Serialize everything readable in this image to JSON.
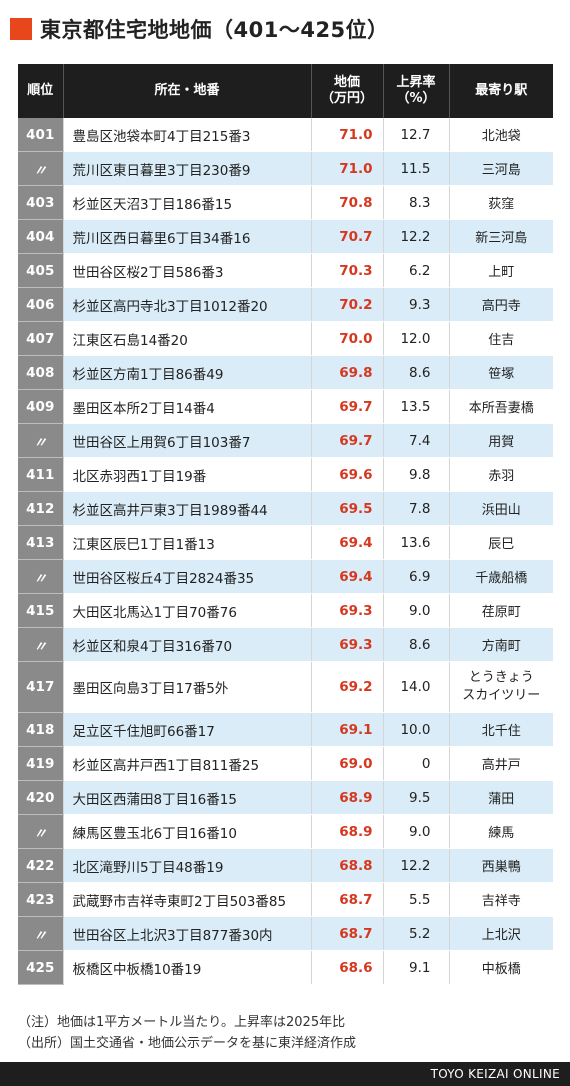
{
  "title": "東京都住宅地地価（401〜425位）",
  "colors": {
    "accent": "#e8471c",
    "header_bg": "#1e1e1e",
    "price_text": "#d6381f",
    "row_alt": "#d9ecf7",
    "rank_bg": "#8a8a8a"
  },
  "chart_data": {
    "type": "table",
    "columns": [
      "順位",
      "所在・地番",
      "地価\n（万円）",
      "上昇率\n（%）",
      "最寄り駅"
    ],
    "rows": [
      {
        "rank": "401",
        "location": "豊島区池袋本町4丁目215番3",
        "price": "71.0",
        "rate": "12.7",
        "station": "北池袋"
      },
      {
        "rank": "〃",
        "location": "荒川区東日暮里3丁目230番9",
        "price": "71.0",
        "rate": "11.5",
        "station": "三河島"
      },
      {
        "rank": "403",
        "location": "杉並区天沼3丁目186番15",
        "price": "70.8",
        "rate": "8.3",
        "station": "荻窪"
      },
      {
        "rank": "404",
        "location": "荒川区西日暮里6丁目34番16",
        "price": "70.7",
        "rate": "12.2",
        "station": "新三河島"
      },
      {
        "rank": "405",
        "location": "世田谷区桜2丁目586番3",
        "price": "70.3",
        "rate": "6.2",
        "station": "上町"
      },
      {
        "rank": "406",
        "location": "杉並区高円寺北3丁目1012番20",
        "price": "70.2",
        "rate": "9.3",
        "station": "高円寺"
      },
      {
        "rank": "407",
        "location": "江東区石島14番20",
        "price": "70.0",
        "rate": "12.0",
        "station": "住吉"
      },
      {
        "rank": "408",
        "location": "杉並区方南1丁目86番49",
        "price": "69.8",
        "rate": "8.6",
        "station": "笹塚"
      },
      {
        "rank": "409",
        "location": "墨田区本所2丁目14番4",
        "price": "69.7",
        "rate": "13.5",
        "station": "本所吾妻橋"
      },
      {
        "rank": "〃",
        "location": "世田谷区上用賀6丁目103番7",
        "price": "69.7",
        "rate": "7.4",
        "station": "用賀"
      },
      {
        "rank": "411",
        "location": "北区赤羽西1丁目19番",
        "price": "69.6",
        "rate": "9.8",
        "station": "赤羽"
      },
      {
        "rank": "412",
        "location": "杉並区高井戸東3丁目1989番44",
        "price": "69.5",
        "rate": "7.8",
        "station": "浜田山"
      },
      {
        "rank": "413",
        "location": "江東区辰巳1丁目1番13",
        "price": "69.4",
        "rate": "13.6",
        "station": "辰巳"
      },
      {
        "rank": "〃",
        "location": "世田谷区桜丘4丁目2824番35",
        "price": "69.4",
        "rate": "6.9",
        "station": "千歳船橋"
      },
      {
        "rank": "415",
        "location": "大田区北馬込1丁目70番76",
        "price": "69.3",
        "rate": "9.0",
        "station": "荏原町"
      },
      {
        "rank": "〃",
        "location": "杉並区和泉4丁目316番70",
        "price": "69.3",
        "rate": "8.6",
        "station": "方南町"
      },
      {
        "rank": "417",
        "location": "墨田区向島3丁目17番5外",
        "price": "69.2",
        "rate": "14.0",
        "station": "とうきょう\nスカイツリー"
      },
      {
        "rank": "418",
        "location": "足立区千住旭町66番17",
        "price": "69.1",
        "rate": "10.0",
        "station": "北千住"
      },
      {
        "rank": "419",
        "location": "杉並区高井戸西1丁目811番25",
        "price": "69.0",
        "rate": "0",
        "station": "高井戸"
      },
      {
        "rank": "420",
        "location": "大田区西蒲田8丁目16番15",
        "price": "68.9",
        "rate": "9.5",
        "station": "蒲田"
      },
      {
        "rank": "〃",
        "location": "練馬区豊玉北6丁目16番10",
        "price": "68.9",
        "rate": "9.0",
        "station": "練馬"
      },
      {
        "rank": "422",
        "location": "北区滝野川5丁目48番19",
        "price": "68.8",
        "rate": "12.2",
        "station": "西巣鴨"
      },
      {
        "rank": "423",
        "location": "武蔵野市吉祥寺東町2丁目503番85",
        "price": "68.7",
        "rate": "5.5",
        "station": "吉祥寺"
      },
      {
        "rank": "〃",
        "location": "世田谷区上北沢3丁目877番30内",
        "price": "68.7",
        "rate": "5.2",
        "station": "上北沢"
      },
      {
        "rank": "425",
        "location": "板橋区中板橋10番19",
        "price": "68.6",
        "rate": "9.1",
        "station": "中板橋"
      }
    ]
  },
  "notes": [
    "（注）地価は1平方メートル当たり。上昇率は2025年比",
    "（出所）国土交通省・地価公示データを基に東洋経済作成"
  ],
  "footer": "TOYO KEIZAI ONLINE"
}
